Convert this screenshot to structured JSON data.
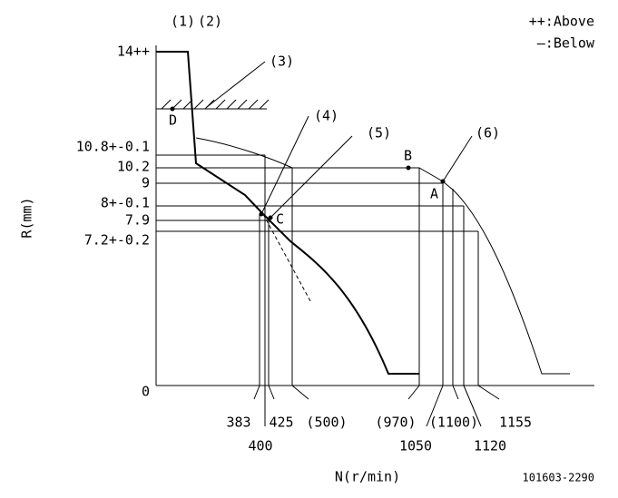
{
  "callouts": [
    "(1)",
    "(2)",
    "(3)",
    "(4)",
    "(5)",
    "(6)"
  ],
  "legend": [
    "++:Above",
    "—:Below"
  ],
  "points": [
    "D",
    "B",
    "A",
    "C"
  ],
  "y_axis": {
    "title": "R(mm)",
    "labels": [
      "14++",
      "10.8+-0.1",
      "10.2",
      "9",
      "8+-0.1",
      "7.9",
      "7.2+-0.2",
      "0"
    ]
  },
  "x_axis": {
    "title": "N(r/min)",
    "labels": [
      "383",
      "400",
      "425",
      "(500)",
      "(970)",
      "1050",
      "(1100)",
      "1120",
      "1155"
    ]
  },
  "code": "101603-2290"
}
